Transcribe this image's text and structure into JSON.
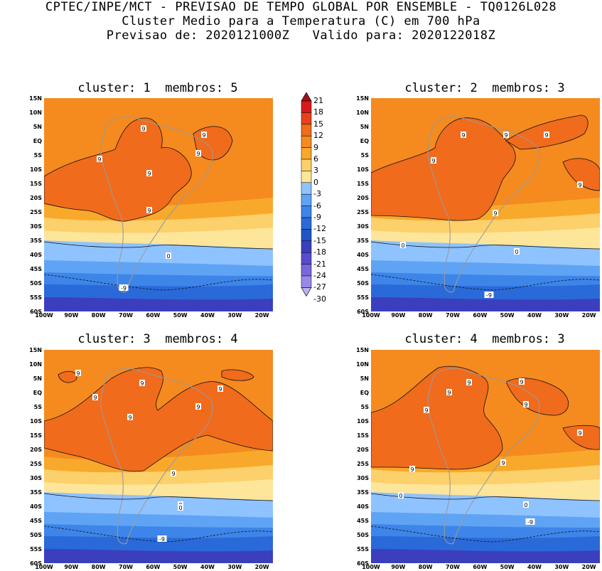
{
  "header": {
    "line1": "CPTEC/INPE/MCT - PREVISAO DE TEMPO GLOBAL POR ENSEMBLE - TQ0126L028",
    "line2": "Cluster Medio para a Temperatura (C) em 700 hPa",
    "line3": "Previsao de: 2020121000Z   Valido para: 2020122018Z"
  },
  "panels": [
    {
      "title": "cluster: 1  membros: 5"
    },
    {
      "title": "cluster: 2  membros: 3"
    },
    {
      "title": "cluster: 3  membros: 4"
    },
    {
      "title": "cluster: 4  membros: 3"
    }
  ],
  "lat_labels": [
    "15N",
    "10N",
    "5N",
    "EQ",
    "5S",
    "10S",
    "15S",
    "20S",
    "25S",
    "30S",
    "35S",
    "40S",
    "45S",
    "50S",
    "55S",
    "60S"
  ],
  "lon_labels": [
    "100W",
    "90W",
    "80W",
    "70W",
    "60W",
    "50W",
    "40W",
    "30W",
    "20W"
  ],
  "colorbar": {
    "labels": [
      "21",
      "18",
      "15",
      "12",
      "9",
      "6",
      "3",
      "0",
      "-3",
      "-6",
      "-9",
      "-12",
      "-15",
      "-18",
      "-21",
      "-24",
      "-27",
      "-30"
    ],
    "colors": [
      "#a50f15",
      "#d7191c",
      "#e8401c",
      "#f06b1c",
      "#f58a1f",
      "#f8a92b",
      "#fcd06a",
      "#fde59a",
      "#8ec3ff",
      "#5fa3f5",
      "#3d85e8",
      "#2a6ad8",
      "#2354c6",
      "#3b3fbe",
      "#5a4ad0",
      "#7a66de",
      "#9a88e8",
      "#c0b0f2"
    ]
  },
  "contour_labels": {
    "warm": "9",
    "zero": "0",
    "cold": "-9"
  },
  "map_colors": {
    "orange_deep": "#f06b1c",
    "orange_mid": "#f58a1f",
    "orange_light": "#f8a92b",
    "yellow": "#fcd06a",
    "pale_yellow": "#fde59a",
    "blue_light": "#8ec3ff",
    "blue_mid": "#5fa3f5",
    "blue_deep": "#3d85e8",
    "blue_darker": "#2a6ad8",
    "purple": "#3b3fbe",
    "land_line": "#9a9a9a"
  }
}
